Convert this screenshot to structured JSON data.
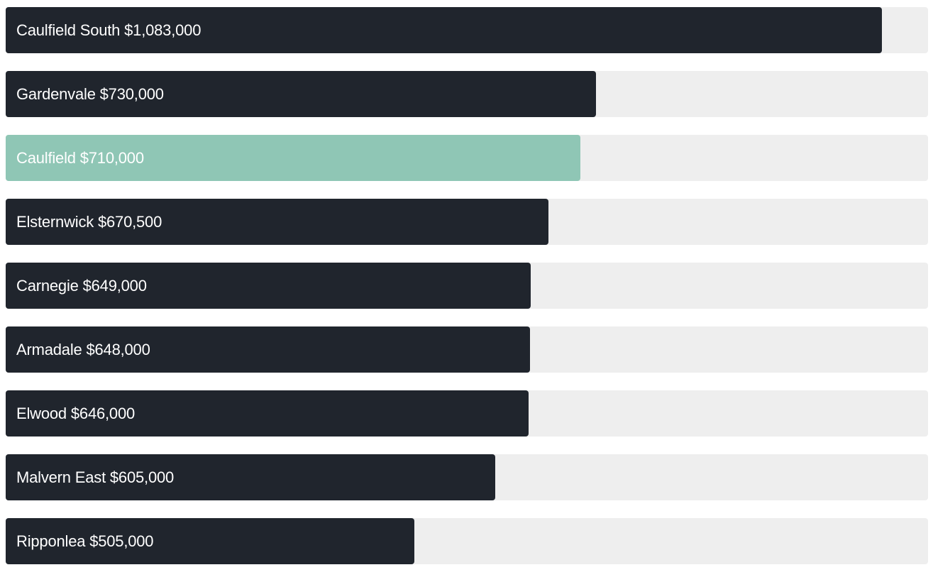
{
  "colors": {
    "default_bar": "#20252d",
    "highlight_bar": "#8fc6b5",
    "track": "#eeeeee",
    "label_text": "#ffffff"
  },
  "chart_data": {
    "type": "bar",
    "orientation": "horizontal",
    "title": "",
    "xlabel": "",
    "ylabel": "",
    "grid": false,
    "xlim": [
      0,
      1140000
    ],
    "categories": [
      "Caulfield South",
      "Gardenvale",
      "Caulfield",
      "Elsternwick",
      "Carnegie",
      "Armadale",
      "Elwood",
      "Malvern East",
      "Ripponlea"
    ],
    "values": [
      1083000,
      730000,
      710000,
      670500,
      649000,
      648000,
      646000,
      605000,
      505000
    ],
    "labels": [
      "Caulfield South $1,083,000",
      "Gardenvale $730,000",
      "Caulfield $710,000",
      "Elsternwick $670,500",
      "Carnegie $649,000",
      "Armadale $648,000",
      "Elwood $646,000",
      "Malvern East $605,000",
      "Ripponlea $505,000"
    ],
    "highlighted": [
      false,
      false,
      true,
      false,
      false,
      false,
      false,
      false,
      false
    ]
  }
}
